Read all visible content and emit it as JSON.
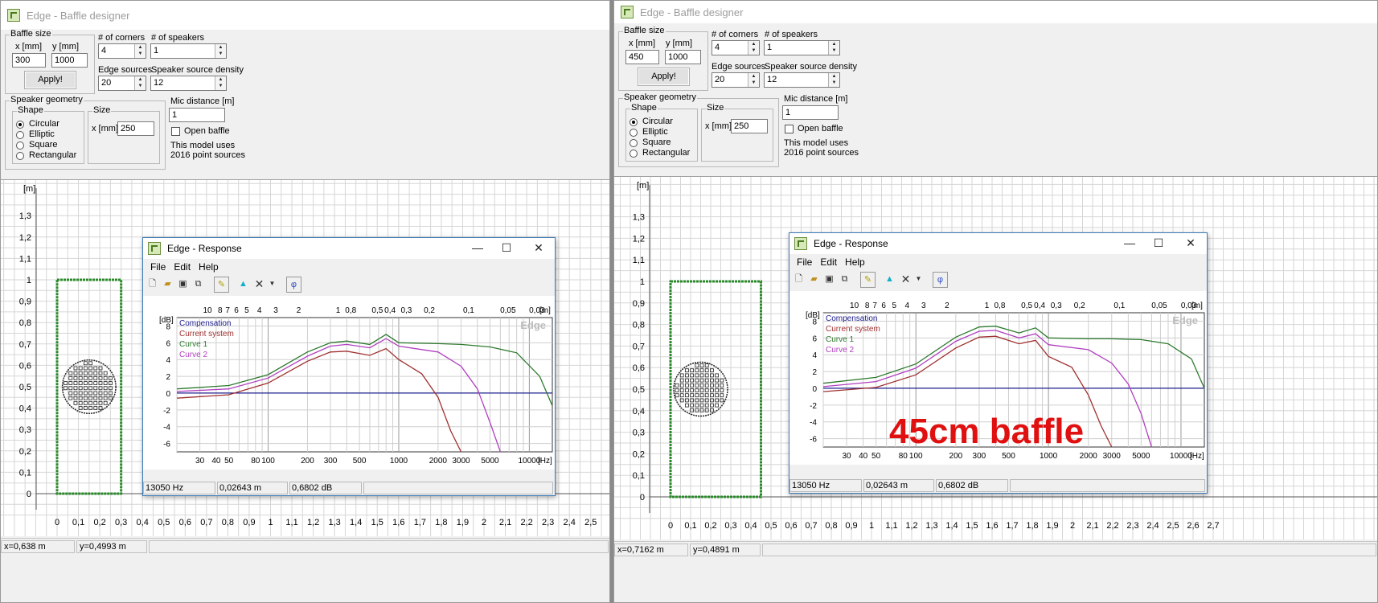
{
  "windows": [
    {
      "title": "Edge - Baffle designer",
      "baffle_size": {
        "label": "Baffle size",
        "x_label": "x [mm]",
        "y_label": "y [mm]",
        "x": "300",
        "y": "1000",
        "apply": "Apply!"
      },
      "corners": {
        "label": "# of corners",
        "value": "4"
      },
      "speakers": {
        "label": "# of speakers",
        "value": "1"
      },
      "edge_sources": {
        "label": "Edge sources",
        "value": "20"
      },
      "density": {
        "label": "Speaker source density",
        "value": "12"
      },
      "geometry": {
        "label": "Speaker geometry",
        "shape_label": "Shape",
        "shapes": [
          "Circular",
          "Elliptic",
          "Square",
          "Rectangular"
        ],
        "size_label": "Size",
        "size_x_label": "x [mm]",
        "size_x": "250"
      },
      "mic": {
        "label": "Mic distance [m]",
        "value": "1"
      },
      "open_baffle": "Open baffle",
      "model_info": [
        "This model uses",
        "2016 point sources"
      ],
      "y_axis_unit": "[m]",
      "y_ticks": [
        "1,3",
        "1,2",
        "1,1",
        "1",
        "0,9",
        "0,8",
        "0,7",
        "0,6",
        "0,5",
        "0,4",
        "0,3",
        "0,2",
        "0,1",
        "0"
      ],
      "x_ticks": [
        "0",
        "0,1",
        "0,2",
        "0,3",
        "0,4",
        "0,5",
        "0,6",
        "0,7",
        "0,8",
        "0,9",
        "1",
        "1,1",
        "1,2",
        "1,3",
        "1,4",
        "1,5",
        "1,6",
        "1,7",
        "1,8",
        "1,9",
        "2",
        "2,1",
        "2,2",
        "2,3",
        "2,4",
        "2,5"
      ],
      "baffle_width_m": 0.3,
      "baffle_height_m": 1.0,
      "status": {
        "x": "x=0,638 m",
        "y": "y=0,4993 m"
      },
      "response": {
        "title": "Edge - Response",
        "menus": [
          "File",
          "Edit",
          "Help"
        ],
        "db_unit": "[dB]",
        "hz_unit": "[Hz]",
        "m_unit": "[m]",
        "db_ticks": [
          "8",
          "6",
          "4",
          "2",
          "0",
          "-2",
          "-4",
          "-6"
        ],
        "hz_ticks": [
          "30",
          "40",
          "50",
          "80",
          "100",
          "200",
          "300",
          "500",
          "1000",
          "2000",
          "3000",
          "5000",
          "10000"
        ],
        "m_ticks": [
          "10",
          "8",
          "7",
          "6",
          "5",
          "4",
          "3",
          "2",
          "1",
          "0,8",
          "0,5",
          "0,4",
          "0,3",
          "0,2",
          "0,1",
          "0,05",
          "0,03"
        ],
        "legend": [
          "Compensation",
          "Current system",
          "Curve 1",
          "Curve 2"
        ],
        "watermark": "Edge",
        "status": [
          "13050 Hz",
          "0,02643 m",
          "0,6802 dB"
        ]
      }
    },
    {
      "title": "Edge - Baffle designer",
      "baffle_size": {
        "label": "Baffle size",
        "x_label": "x [mm]",
        "y_label": "y [mm]",
        "x": "450",
        "y": "1000",
        "apply": "Apply!"
      },
      "corners": {
        "label": "# of corners",
        "value": "4"
      },
      "speakers": {
        "label": "# of speakers",
        "value": "1"
      },
      "edge_sources": {
        "label": "Edge sources",
        "value": "20"
      },
      "density": {
        "label": "Speaker source density",
        "value": "12"
      },
      "geometry": {
        "label": "Speaker geometry",
        "shape_label": "Shape",
        "shapes": [
          "Circular",
          "Elliptic",
          "Square",
          "Rectangular"
        ],
        "size_label": "Size",
        "size_x_label": "x [mm]",
        "size_x": "250"
      },
      "mic": {
        "label": "Mic distance [m]",
        "value": "1"
      },
      "open_baffle": "Open baffle",
      "model_info": [
        "This model uses",
        "2016 point sources"
      ],
      "y_axis_unit": "[m]",
      "y_ticks": [
        "1,3",
        "1,2",
        "1,1",
        "1",
        "0,9",
        "0,8",
        "0,7",
        "0,6",
        "0,5",
        "0,4",
        "0,3",
        "0,2",
        "0,1",
        "0"
      ],
      "x_ticks": [
        "0",
        "0,1",
        "0,2",
        "0,3",
        "0,4",
        "0,5",
        "0,6",
        "0,7",
        "0,8",
        "0,9",
        "1",
        "1,1",
        "1,2",
        "1,3",
        "1,4",
        "1,5",
        "1,6",
        "1,7",
        "1,8",
        "1,9",
        "2",
        "2,1",
        "2,2",
        "2,3",
        "2,4",
        "2,5",
        "2,6",
        "2,7"
      ],
      "baffle_width_m": 0.45,
      "baffle_height_m": 1.0,
      "status": {
        "x": "x=0,7162 m",
        "y": "y=0,4891 m"
      },
      "overlay_text": "45cm baffle",
      "response": {
        "title": "Edge - Response",
        "menus": [
          "File",
          "Edit",
          "Help"
        ],
        "db_unit": "[dB]",
        "hz_unit": "[Hz]",
        "m_unit": "[m]",
        "db_ticks": [
          "8",
          "6",
          "4",
          "2",
          "0",
          "-2",
          "-4",
          "-6"
        ],
        "hz_ticks": [
          "30",
          "40",
          "50",
          "80",
          "100",
          "200",
          "300",
          "500",
          "1000",
          "2000",
          "3000",
          "5000",
          "10000"
        ],
        "m_ticks": [
          "10",
          "8",
          "7",
          "6",
          "5",
          "4",
          "3",
          "2",
          "1",
          "0,8",
          "0,5",
          "0,4",
          "0,3",
          "0,2",
          "0,1",
          "0,05",
          "0,03"
        ],
        "legend": [
          "Compensation",
          "Current system",
          "Curve 1",
          "Curve 2"
        ],
        "watermark": "Edge",
        "status": [
          "13050 Hz",
          "0,02643 m",
          "0,6802 dB"
        ]
      }
    }
  ],
  "colors": {
    "compensation": "#1c1c8c",
    "current_system": "#a03030",
    "curve1": "#2e7a2e",
    "curve2": "#b040c0",
    "baffle": "#2a8a2a",
    "overlay": "#e01010"
  },
  "chart_data": [
    {
      "type": "line",
      "xlabel": "[Hz]",
      "ylabel": "[dB]",
      "xscale": "log",
      "xlim": [
        20,
        15000
      ],
      "ylim": [
        -7,
        9
      ],
      "series": [
        {
          "name": "Compensation",
          "x": [
            20,
            15000
          ],
          "values": [
            0,
            0
          ]
        },
        {
          "name": "Current system",
          "x": [
            20,
            50,
            100,
            200,
            300,
            400,
            600,
            800,
            1000,
            1500,
            2000,
            2500,
            3000
          ],
          "values": [
            -0.6,
            -0.2,
            1.2,
            3.8,
            4.9,
            5.0,
            4.5,
            5.3,
            4.0,
            2.3,
            -0.5,
            -4.5,
            -8
          ]
        },
        {
          "name": "Curve 1",
          "x": [
            20,
            50,
            100,
            200,
            300,
            400,
            600,
            800,
            1000,
            2000,
            3000,
            5000,
            8000,
            12000,
            15000
          ],
          "values": [
            0.5,
            0.9,
            2.2,
            4.9,
            6.0,
            6.2,
            5.8,
            7.0,
            6.0,
            5.9,
            5.8,
            5.5,
            4.8,
            2.0,
            -1.5
          ]
        },
        {
          "name": "Curve 2",
          "x": [
            20,
            50,
            100,
            200,
            300,
            400,
            600,
            800,
            1000,
            2000,
            3000,
            4000,
            5000,
            6000
          ],
          "values": [
            0.2,
            0.5,
            1.8,
            4.4,
            5.6,
            5.8,
            5.4,
            6.5,
            5.6,
            4.9,
            3.2,
            0.5,
            -3.5,
            -8
          ]
        }
      ]
    },
    {
      "type": "line",
      "xlabel": "[Hz]",
      "ylabel": "[dB]",
      "xscale": "log",
      "xlim": [
        20,
        15000
      ],
      "ylim": [
        -7,
        9
      ],
      "series": [
        {
          "name": "Compensation",
          "x": [
            20,
            15000
          ],
          "values": [
            0,
            0
          ]
        },
        {
          "name": "Current system",
          "x": [
            20,
            50,
            100,
            200,
            300,
            400,
            600,
            800,
            1000,
            1500,
            2000,
            2500,
            3000
          ],
          "values": [
            -0.4,
            0.1,
            1.6,
            4.8,
            6.1,
            6.2,
            5.3,
            5.7,
            3.8,
            2.5,
            -0.8,
            -4.5,
            -8
          ]
        },
        {
          "name": "Curve 1",
          "x": [
            20,
            50,
            100,
            200,
            300,
            400,
            600,
            800,
            1000,
            2000,
            3000,
            5000,
            8000,
            12000,
            15000
          ],
          "values": [
            0.6,
            1.3,
            2.9,
            6.1,
            7.3,
            7.4,
            6.6,
            7.2,
            6.0,
            5.9,
            5.9,
            5.8,
            5.3,
            3.5,
            0
          ]
        },
        {
          "name": "Curve 2",
          "x": [
            20,
            50,
            100,
            200,
            300,
            400,
            600,
            800,
            1000,
            2000,
            3000,
            4000,
            5000,
            6000
          ],
          "values": [
            0.2,
            0.8,
            2.4,
            5.6,
            6.8,
            6.9,
            6.0,
            6.5,
            5.2,
            4.6,
            3.0,
            0.5,
            -3.0,
            -8
          ]
        }
      ]
    }
  ]
}
